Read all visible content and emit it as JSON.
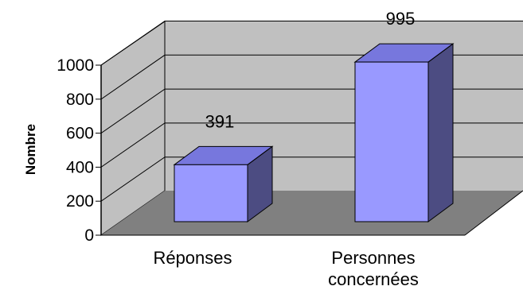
{
  "chart_data": {
    "type": "bar",
    "style": "3d-column",
    "categories": [
      "Réponses",
      "Personnes concernées"
    ],
    "category_lines": [
      [
        "Réponses"
      ],
      [
        "Personnes",
        "concernées"
      ]
    ],
    "values": [
      391,
      995
    ],
    "data_labels": [
      "391",
      "995"
    ],
    "title": "",
    "xlabel": "",
    "ylabel": "Nombre",
    "ylim": [
      0,
      1000
    ],
    "yticks": [
      0,
      200,
      400,
      600,
      800,
      1000
    ],
    "grid": true,
    "legend": "none"
  },
  "colors": {
    "bar_front": "#9999ff",
    "bar_top": "#7777dd",
    "bar_side": "#4c4c82",
    "wall": "#c0c0c0",
    "floor": "#808080",
    "gridline": "#000000"
  }
}
